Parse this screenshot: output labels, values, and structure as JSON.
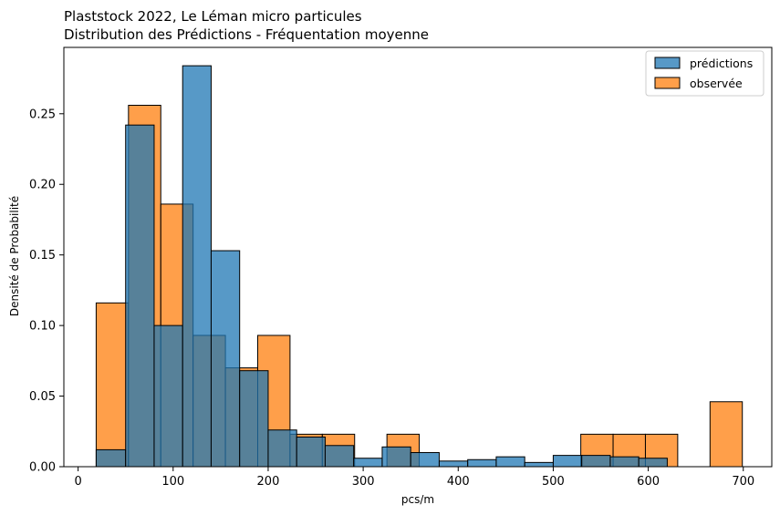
{
  "chart_data": {
    "type": "histogram",
    "title_line1": "Plaststock 2022, Le Léman micro particules",
    "title_line2": "Distribution des Prédictions - Fréquentation moyenne",
    "xlabel": "pcs/m",
    "ylabel": "Densité de Probabilité",
    "xlim": [
      -15,
      730
    ],
    "ylim": [
      0,
      0.297
    ],
    "xticks": [
      0,
      100,
      200,
      300,
      400,
      500,
      600,
      700
    ],
    "yticks": [
      0.0,
      0.05,
      0.1,
      0.15,
      0.2,
      0.25
    ],
    "grid": false,
    "legend_position": "top-right",
    "series": [
      {
        "name": "prédictions",
        "color": "#1f77b4",
        "bins": [
          {
            "x0": 19,
            "x1": 50,
            "y": 0.012
          },
          {
            "x0": 50,
            "x1": 80,
            "y": 0.242
          },
          {
            "x0": 80,
            "x1": 110,
            "y": 0.1
          },
          {
            "x0": 110,
            "x1": 140,
            "y": 0.284
          },
          {
            "x0": 140,
            "x1": 170,
            "y": 0.153
          },
          {
            "x0": 170,
            "x1": 200,
            "y": 0.068
          },
          {
            "x0": 200,
            "x1": 230,
            "y": 0.026
          },
          {
            "x0": 230,
            "x1": 260,
            "y": 0.021
          },
          {
            "x0": 260,
            "x1": 290,
            "y": 0.015
          },
          {
            "x0": 290,
            "x1": 320,
            "y": 0.006
          },
          {
            "x0": 320,
            "x1": 350,
            "y": 0.014
          },
          {
            "x0": 350,
            "x1": 380,
            "y": 0.01
          },
          {
            "x0": 380,
            "x1": 410,
            "y": 0.004
          },
          {
            "x0": 410,
            "x1": 440,
            "y": 0.005
          },
          {
            "x0": 440,
            "x1": 470,
            "y": 0.007
          },
          {
            "x0": 470,
            "x1": 500,
            "y": 0.003
          },
          {
            "x0": 500,
            "x1": 530,
            "y": 0.008
          },
          {
            "x0": 530,
            "x1": 560,
            "y": 0.008
          },
          {
            "x0": 560,
            "x1": 590,
            "y": 0.007
          },
          {
            "x0": 590,
            "x1": 620,
            "y": 0.006
          }
        ]
      },
      {
        "name": "observée",
        "color": "#ff7f0e",
        "bins": [
          {
            "x0": 19,
            "x1": 53,
            "y": 0.116
          },
          {
            "x0": 53,
            "x1": 87,
            "y": 0.256
          },
          {
            "x0": 87,
            "x1": 121,
            "y": 0.186
          },
          {
            "x0": 121,
            "x1": 155,
            "y": 0.093
          },
          {
            "x0": 155,
            "x1": 189,
            "y": 0.07
          },
          {
            "x0": 189,
            "x1": 223,
            "y": 0.093
          },
          {
            "x0": 223,
            "x1": 257,
            "y": 0.023
          },
          {
            "x0": 257,
            "x1": 291,
            "y": 0.023
          },
          {
            "x0": 291,
            "x1": 325,
            "y": 0.0
          },
          {
            "x0": 325,
            "x1": 359,
            "y": 0.023
          },
          {
            "x0": 359,
            "x1": 393,
            "y": 0.0
          },
          {
            "x0": 393,
            "x1": 427,
            "y": 0.0
          },
          {
            "x0": 427,
            "x1": 461,
            "y": 0.0
          },
          {
            "x0": 461,
            "x1": 495,
            "y": 0.0
          },
          {
            "x0": 495,
            "x1": 529,
            "y": 0.0
          },
          {
            "x0": 529,
            "x1": 563,
            "y": 0.023
          },
          {
            "x0": 563,
            "x1": 597,
            "y": 0.023
          },
          {
            "x0": 597,
            "x1": 631,
            "y": 0.023
          },
          {
            "x0": 631,
            "x1": 665,
            "y": 0.0
          },
          {
            "x0": 665,
            "x1": 699,
            "y": 0.046
          }
        ]
      }
    ]
  }
}
